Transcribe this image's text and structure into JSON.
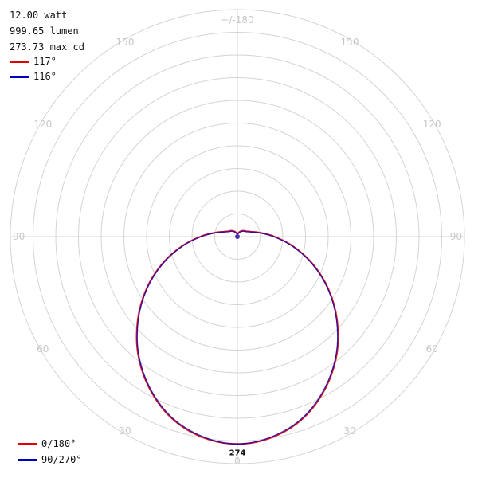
{
  "header": {
    "power": "12.00 watt",
    "flux": "999.65 lumen",
    "max_cd": "273.73 max cd"
  },
  "beam_angles": [
    {
      "label": "117°",
      "color": "#e00000"
    },
    {
      "label": "116°",
      "color": "#0000c0"
    }
  ],
  "chart_data": {
    "type": "polar",
    "angle_labels": [
      "+/-180",
      "150",
      "150",
      "120",
      "120",
      "90",
      "90",
      "60",
      "60",
      "30",
      "30",
      "0"
    ],
    "radius_max": 300,
    "ring_step": 30,
    "peak_label": "274",
    "peak_value": 274,
    "series": [
      {
        "name": "0/180°",
        "color": "#e00000",
        "angles_deg": [
          0,
          10,
          20,
          30,
          40,
          50,
          60,
          70,
          80,
          90,
          100,
          110,
          120,
          130,
          140,
          150,
          160,
          170,
          180
        ],
        "values": [
          274,
          269,
          255,
          232,
          204,
          172,
          139,
          106,
          75,
          49,
          30,
          19,
          14,
          12,
          10,
          8,
          6,
          4,
          3
        ]
      },
      {
        "name": "90/270°",
        "color": "#0000c0",
        "angles_deg": [
          0,
          10,
          20,
          30,
          40,
          50,
          60,
          70,
          80,
          90,
          100,
          110,
          120,
          130,
          140,
          150,
          160,
          170,
          180
        ],
        "values": [
          274,
          268,
          254,
          231,
          203,
          171,
          138,
          105,
          74,
          48,
          29,
          18,
          13,
          11,
          9,
          7,
          5,
          4,
          3
        ]
      }
    ]
  }
}
